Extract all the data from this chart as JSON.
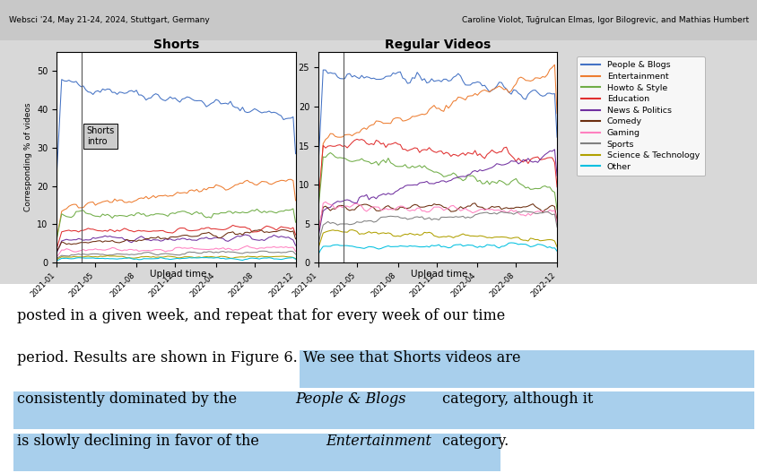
{
  "header_left": "Websci '24, May 21-24, 2024, Stuttgart, Germany",
  "header_right": "Caroline Violot, Tuğrulcan Elmas, Igor Bilogrevic, and Mathias Humbert",
  "shorts_title": "Shorts",
  "regular_title": "Regular Videos",
  "ylabel": "Corresponding % of videos",
  "xlabel": "Upload time",
  "xtick_labels": [
    "2021-01",
    "2021-05",
    "2021-08",
    "2021-12",
    "2022-04",
    "2022-08",
    "2022-12"
  ],
  "shorts_ylim": [
    0,
    55
  ],
  "regular_ylim": [
    0,
    27
  ],
  "shorts_yticks": [
    0,
    10,
    20,
    30,
    40,
    50
  ],
  "regular_yticks": [
    0,
    5,
    10,
    15,
    20,
    25
  ],
  "categories": [
    "People & Blogs",
    "Entertainment",
    "Howto & Style",
    "Education",
    "News & Politics",
    "Comedy",
    "Gaming",
    "Sports",
    "Science & Technology",
    "Other"
  ],
  "colors": [
    "#4472c4",
    "#ed7d31",
    "#70ad47",
    "#e03030",
    "#7030a0",
    "#6b2d0e",
    "#ff80c0",
    "#808080",
    "#b0a000",
    "#00c0e0"
  ],
  "annotation_text": "Shorts\nintro",
  "chart_bg": "#d8d8d8",
  "fig_top_bg": "#d0d0d0",
  "text_bg": "#ffffff",
  "highlight_color": "#a8cfec",
  "n_points": 100
}
